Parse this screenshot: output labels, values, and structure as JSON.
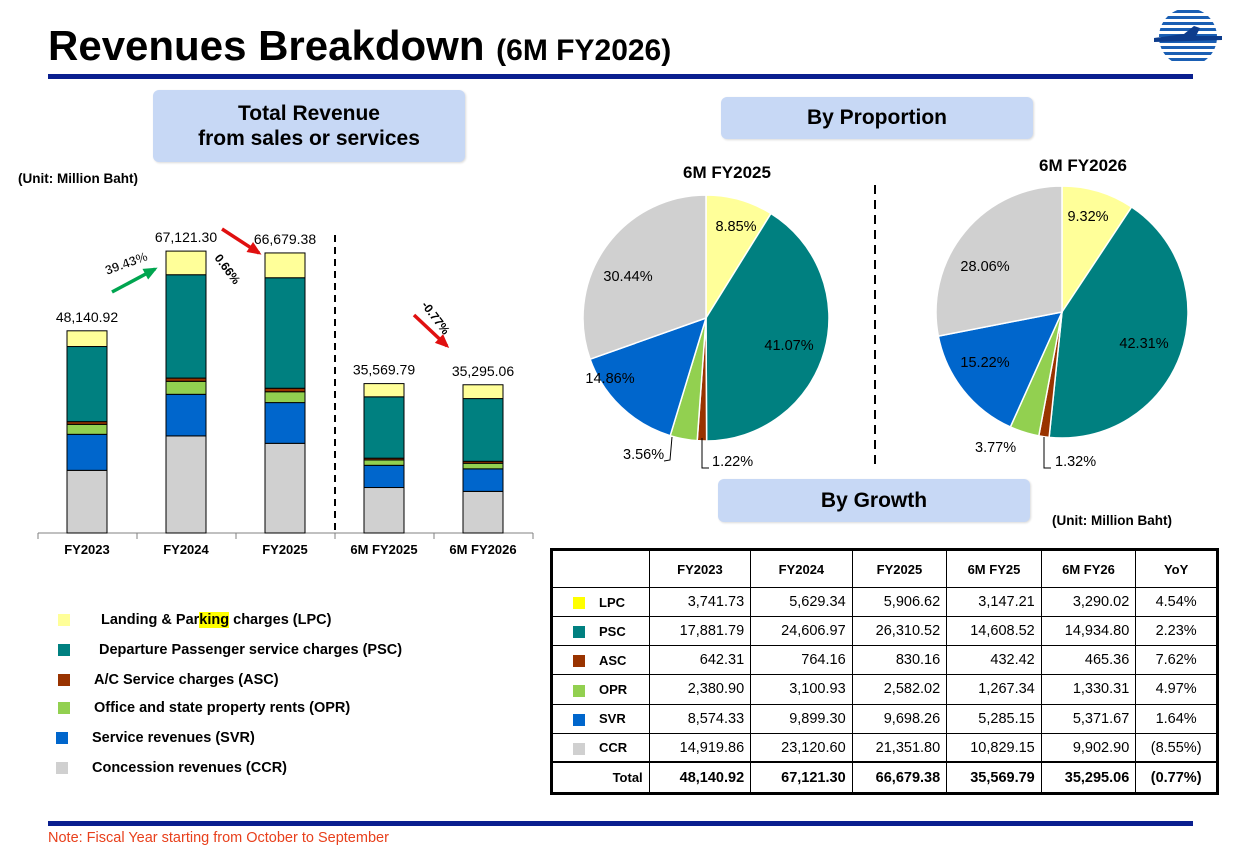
{
  "header": {
    "title_main": "Revenues Breakdown",
    "title_sub": "(6M FY2026)",
    "logo_icon": "aot-logo-icon"
  },
  "left_panel": {
    "title": "Total Revenue\nfrom sales or services",
    "unit": "(Unit: Million Baht)"
  },
  "right_panel": {
    "proportion_title": "By Proportion",
    "growth_title": "By Growth",
    "unit": "(Unit: Million Baht)"
  },
  "colors": {
    "LPC": "#ffff99",
    "PSC": "#008080",
    "ASC": "#993300",
    "OPR": "#92d050",
    "SVR": "#0066cc",
    "CCR": "#d0d0d0",
    "arrow_up": "#00a550",
    "arrow_down": "#e01010",
    "accent": "#0a1f8f"
  },
  "legend": [
    {
      "key": "LPC",
      "pre": "Landing & Par",
      "highlight": "king",
      "post": " charges (LPC)"
    },
    {
      "key": "PSC",
      "pre": "Departure Passenger service charges (PSC)",
      "highlight": "",
      "post": ""
    },
    {
      "key": "ASC",
      "pre": "A/C Service charges (ASC)",
      "highlight": "",
      "post": ""
    },
    {
      "key": "OPR",
      "pre": "Office and state property rents (OPR)",
      "highlight": "",
      "post": ""
    },
    {
      "key": "SVR",
      "pre": "Service revenues (SVR)",
      "highlight": "",
      "post": ""
    },
    {
      "key": "CCR",
      "pre": "Concession revenues (CCR)",
      "highlight": "",
      "post": ""
    }
  ],
  "footnote": "Note: Fiscal Year starting from October to September",
  "chart_data": [
    {
      "type": "bar",
      "stacked": true,
      "categories": [
        "FY2023",
        "FY2024",
        "FY2025",
        "6M FY2025",
        "6M FY2026"
      ],
      "totals": [
        "48,140.92",
        "67,121.30",
        "66,679.38",
        "35,569.79",
        "35,295.06"
      ],
      "series": [
        {
          "name": "CCR",
          "values": [
            14919.86,
            23120.6,
            21351.8,
            10829.15,
            9902.9
          ]
        },
        {
          "name": "SVR",
          "values": [
            8574.33,
            9899.3,
            9698.26,
            5285.15,
            5371.67
          ]
        },
        {
          "name": "OPR",
          "values": [
            2380.9,
            3100.93,
            2582.02,
            1267.34,
            1330.31
          ]
        },
        {
          "name": "ASC",
          "values": [
            642.31,
            764.16,
            830.16,
            432.42,
            465.36
          ]
        },
        {
          "name": "PSC",
          "values": [
            17881.79,
            24606.97,
            26310.52,
            14608.52,
            14934.8
          ]
        },
        {
          "name": "LPC",
          "values": [
            3741.73,
            5629.34,
            5906.62,
            3147.21,
            3290.02
          ]
        }
      ],
      "growth_annotations": [
        {
          "label": "39.43%",
          "between": [
            "FY2023",
            "FY2024"
          ],
          "direction": "up"
        },
        {
          "label": "0.66%",
          "between": [
            "FY2024",
            "FY2025"
          ],
          "direction": "down"
        },
        {
          "label": "-0.77%",
          "between": [
            "6M FY2025",
            "6M FY2026"
          ],
          "direction": "down"
        }
      ],
      "ylim": [
        0,
        75000
      ],
      "grid": false
    },
    {
      "type": "pie",
      "title": "6M FY2025",
      "slices": [
        {
          "name": "LPC",
          "label": "8.85%",
          "value": 8.85
        },
        {
          "name": "PSC",
          "label": "41.07%",
          "value": 41.07
        },
        {
          "name": "ASC",
          "label": "1.22%",
          "value": 1.22
        },
        {
          "name": "OPR",
          "label": "3.56%",
          "value": 3.56
        },
        {
          "name": "SVR",
          "label": "14.86%",
          "value": 14.86
        },
        {
          "name": "CCR",
          "label": "30.44%",
          "value": 30.44
        }
      ]
    },
    {
      "type": "pie",
      "title": "6M FY2026",
      "slices": [
        {
          "name": "LPC",
          "label": "9.32%",
          "value": 9.32
        },
        {
          "name": "PSC",
          "label": "42.31%",
          "value": 42.31
        },
        {
          "name": "ASC",
          "label": "1.32%",
          "value": 1.32
        },
        {
          "name": "OPR",
          "label": "3.77%",
          "value": 3.77
        },
        {
          "name": "SVR",
          "label": "15.22%",
          "value": 15.22
        },
        {
          "name": "CCR",
          "label": "28.06%",
          "value": 28.06
        }
      ]
    },
    {
      "type": "table",
      "columns": [
        "",
        "FY2023",
        "FY2024",
        "FY2025",
        "6M FY25",
        "6M FY26",
        "YoY"
      ],
      "rows": [
        {
          "label": "LPC",
          "values": [
            "3,741.73",
            "5,629.34",
            "5,906.62",
            "3,147.21",
            "3,290.02",
            "4.54%"
          ]
        },
        {
          "label": "PSC",
          "values": [
            "17,881.79",
            "24,606.97",
            "26,310.52",
            "14,608.52",
            "14,934.80",
            "2.23%"
          ]
        },
        {
          "label": "ASC",
          "values": [
            "642.31",
            "764.16",
            "830.16",
            "432.42",
            "465.36",
            "7.62%"
          ]
        },
        {
          "label": "OPR",
          "values": [
            "2,380.90",
            "3,100.93",
            "2,582.02",
            "1,267.34",
            "1,330.31",
            "4.97%"
          ]
        },
        {
          "label": "SVR",
          "values": [
            "8,574.33",
            "9,899.30",
            "9,698.26",
            "5,285.15",
            "5,371.67",
            "1.64%"
          ]
        },
        {
          "label": "CCR",
          "values": [
            "14,919.86",
            "23,120.60",
            "21,351.80",
            "10,829.15",
            "9,902.90",
            "(8.55%)"
          ]
        }
      ],
      "total": {
        "label": "Total",
        "values": [
          "48,140.92",
          "67,121.30",
          "66,679.38",
          "35,569.79",
          "35,295.06",
          "(0.77%)"
        ]
      }
    }
  ]
}
